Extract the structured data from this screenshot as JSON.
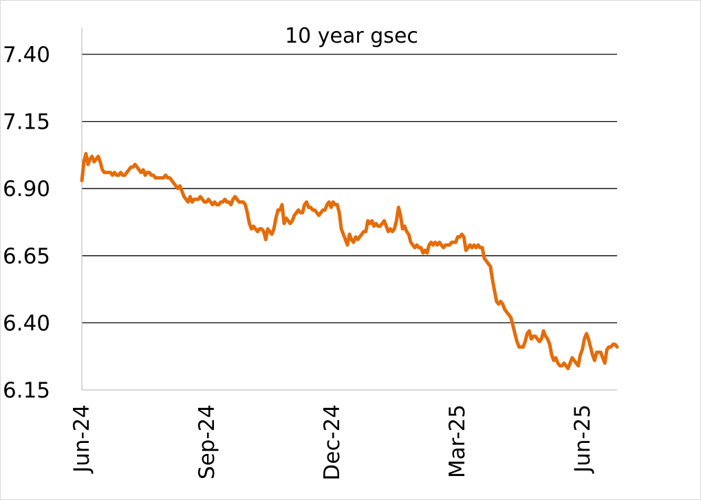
{
  "chart_data": {
    "type": "line",
    "title": "10 year gsec",
    "xlabel": "",
    "ylabel": "",
    "ylim": [
      6.15,
      7.4
    ],
    "y_ticks": [
      "7.40",
      "7.15",
      "6.90",
      "6.65",
      "6.40",
      "6.15"
    ],
    "x_ticks": [
      "Jun-24",
      "Sep-24",
      "Dec-24",
      "Mar-25",
      "Jun-25"
    ],
    "grid": "horizontal",
    "legend": "none",
    "line_color": "#E46C0A",
    "series": [
      {
        "values": [
          6.93,
          7.0,
          7.03,
          6.99,
          7.01,
          7.02,
          7.0,
          7.01,
          7.02,
          7.0,
          6.97,
          6.96,
          6.96,
          6.96,
          6.96,
          6.95,
          6.96,
          6.95,
          6.95,
          6.96,
          6.95,
          6.95,
          6.96,
          6.97,
          6.98,
          6.98,
          6.99,
          6.98,
          6.97,
          6.96,
          6.97,
          6.95,
          6.96,
          6.96,
          6.95,
          6.95,
          6.94,
          6.94,
          6.94,
          6.94,
          6.94,
          6.95,
          6.94,
          6.94,
          6.93,
          6.92,
          6.91,
          6.9,
          6.91,
          6.89,
          6.87,
          6.86,
          6.85,
          6.87,
          6.85,
          6.86,
          6.86,
          6.86,
          6.87,
          6.86,
          6.85,
          6.85,
          6.86,
          6.85,
          6.84,
          6.85,
          6.84,
          6.84,
          6.85,
          6.85,
          6.86,
          6.85,
          6.85,
          6.84,
          6.86,
          6.87,
          6.86,
          6.85,
          6.85,
          6.85,
          6.84,
          6.81,
          6.77,
          6.75,
          6.76,
          6.75,
          6.74,
          6.75,
          6.75,
          6.74,
          6.71,
          6.75,
          6.74,
          6.73,
          6.75,
          6.79,
          6.82,
          6.82,
          6.84,
          6.77,
          6.79,
          6.78,
          6.77,
          6.78,
          6.8,
          6.81,
          6.82,
          6.81,
          6.81,
          6.84,
          6.85,
          6.83,
          6.83,
          6.82,
          6.82,
          6.81,
          6.8,
          6.81,
          6.82,
          6.82,
          6.84,
          6.85,
          6.83,
          6.85,
          6.84,
          6.84,
          6.81,
          6.75,
          6.73,
          6.71,
          6.69,
          6.73,
          6.71,
          6.7,
          6.72,
          6.71,
          6.72,
          6.73,
          6.74,
          6.74,
          6.78,
          6.77,
          6.78,
          6.76,
          6.77,
          6.76,
          6.76,
          6.77,
          6.78,
          6.76,
          6.74,
          6.75,
          6.74,
          6.75,
          6.78,
          6.83,
          6.8,
          6.75,
          6.76,
          6.74,
          6.73,
          6.7,
          6.69,
          6.68,
          6.69,
          6.68,
          6.68,
          6.66,
          6.67,
          6.66,
          6.69,
          6.7,
          6.69,
          6.7,
          6.69,
          6.7,
          6.69,
          6.68,
          6.69,
          6.69,
          6.69,
          6.7,
          6.7,
          6.7,
          6.72,
          6.72,
          6.73,
          6.72,
          6.67,
          6.68,
          6.69,
          6.68,
          6.69,
          6.68,
          6.69,
          6.68,
          6.68,
          6.64,
          6.63,
          6.62,
          6.61,
          6.56,
          6.52,
          6.48,
          6.47,
          6.48,
          6.47,
          6.45,
          6.44,
          6.43,
          6.42,
          6.39,
          6.36,
          6.33,
          6.31,
          6.31,
          6.31,
          6.33,
          6.36,
          6.37,
          6.34,
          6.35,
          6.35,
          6.34,
          6.33,
          6.34,
          6.37,
          6.35,
          6.34,
          6.32,
          6.28,
          6.26,
          6.27,
          6.25,
          6.24,
          6.24,
          6.25,
          6.24,
          6.23,
          6.25,
          6.27,
          6.26,
          6.25,
          6.24,
          6.28,
          6.3,
          6.34,
          6.36,
          6.34,
          6.31,
          6.28,
          6.26,
          6.29,
          6.29,
          6.29,
          6.27,
          6.25,
          6.3,
          6.31,
          6.31,
          6.32,
          6.32,
          6.31
        ]
      }
    ]
  }
}
